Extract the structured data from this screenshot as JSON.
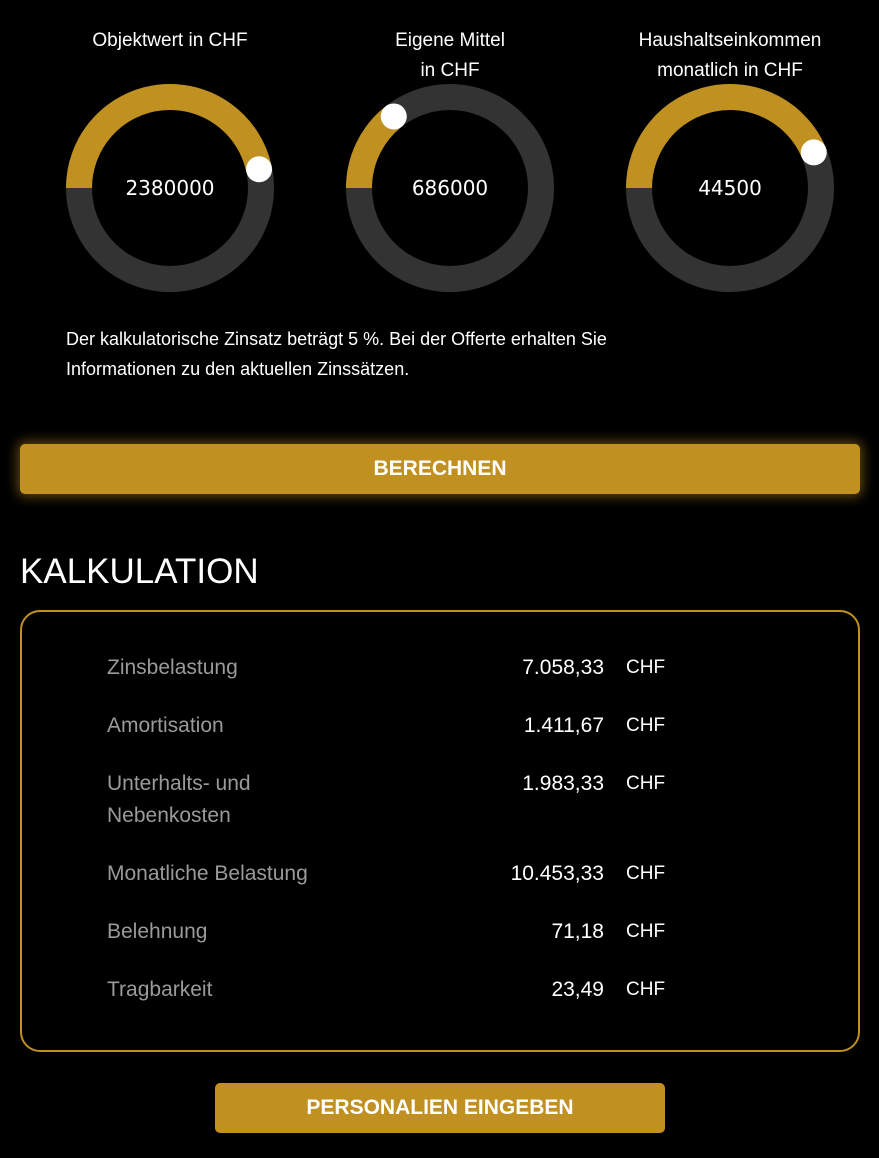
{
  "colors": {
    "accent": "#c09020",
    "track": "#333333",
    "knob": "#ffffff",
    "background": "#000000"
  },
  "dials": [
    {
      "label_lines": [
        "Objektwert in CHF",
        ""
      ],
      "value": "2380000",
      "fill_fraction": 0.467
    },
    {
      "label_lines": [
        "Eigene Mittel",
        "in CHF"
      ],
      "value": "686000",
      "fill_fraction": 0.144
    },
    {
      "label_lines": [
        "Haushaltseinkommen",
        "monatlich in CHF"
      ],
      "value": "44500",
      "fill_fraction": 0.436
    }
  ],
  "info_lines": [
    "Der kalkulatorische Zinsatz beträgt 5 %. Bei der Offerte erhalten Sie",
    "Informationen zu den aktuellen Zinssätzen."
  ],
  "calculate_button": "BERECHNEN",
  "section_title": "KALKULATION",
  "rows": [
    {
      "label": "Zinsbelastung",
      "value": "7.058,33",
      "currency": "CHF"
    },
    {
      "label": "Amortisation",
      "value": "1.411,67",
      "currency": "CHF"
    },
    {
      "label": "Unterhalts- und Nebenkosten",
      "value": "1.983,33",
      "currency": "CHF"
    },
    {
      "label": "Monatliche Belastung",
      "value": "10.453,33",
      "currency": "CHF"
    },
    {
      "label": "Belehnung",
      "value": "71,18",
      "currency": "CHF"
    },
    {
      "label": "Tragbarkeit",
      "value": "23,49",
      "currency": "CHF"
    }
  ],
  "personal_button": "PERSONALIEN EINGEBEN"
}
